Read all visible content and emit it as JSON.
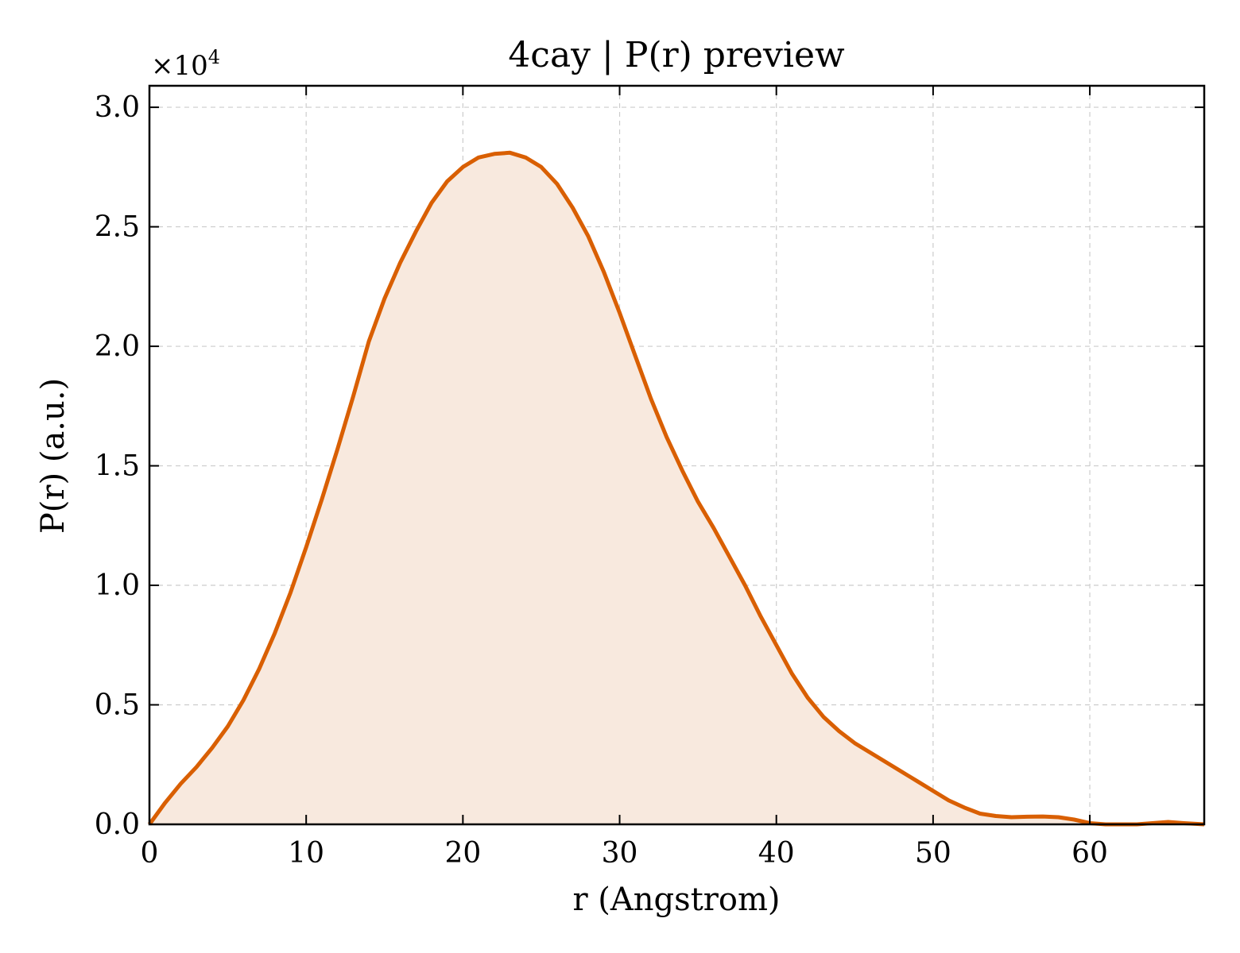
{
  "chart_data": {
    "type": "area",
    "title": "4cay | P(r) preview",
    "xlabel": "r (Angstrom)",
    "ylabel": "P(r) (a.u.)",
    "y_scale_label": "×10",
    "y_scale_exponent": "4",
    "xlim": [
      0,
      67.3
    ],
    "ylim": [
      0,
      3.09
    ],
    "xticks": [
      0,
      10,
      20,
      30,
      40,
      50,
      60
    ],
    "xtick_labels": [
      "0",
      "10",
      "20",
      "30",
      "40",
      "50",
      "60"
    ],
    "yticks": [
      0,
      0.5,
      1.0,
      1.5,
      2.0,
      2.5,
      3.0
    ],
    "ytick_labels": [
      "0.0",
      "0.5",
      "1.0",
      "1.5",
      "2.0",
      "2.5",
      "3.0"
    ],
    "grid": true,
    "line_color": "#d95f02",
    "fill_color": "#f8e9de",
    "series": [
      {
        "x": [
          0,
          1,
          2,
          3,
          4,
          5,
          6,
          7,
          8,
          9,
          10,
          11,
          12,
          13,
          14,
          15,
          16,
          17,
          18,
          19,
          20,
          21,
          22,
          23,
          24,
          25,
          26,
          27,
          28,
          29,
          30,
          31,
          32,
          33,
          34,
          35,
          36,
          37,
          38,
          39,
          40,
          41,
          42,
          43,
          44,
          45,
          46,
          47,
          48,
          49,
          50,
          51,
          52,
          53,
          54,
          55,
          56,
          57,
          58,
          59,
          60,
          61,
          62,
          63,
          64,
          65,
          66,
          67.3
        ],
        "y": [
          0,
          0.09,
          0.17,
          0.24,
          0.32,
          0.41,
          0.52,
          0.65,
          0.8,
          0.97,
          1.16,
          1.36,
          1.57,
          1.79,
          2.02,
          2.2,
          2.35,
          2.48,
          2.6,
          2.69,
          2.75,
          2.79,
          2.805,
          2.81,
          2.79,
          2.75,
          2.68,
          2.58,
          2.46,
          2.31,
          2.14,
          1.96,
          1.78,
          1.62,
          1.48,
          1.35,
          1.24,
          1.12,
          1.0,
          0.87,
          0.75,
          0.63,
          0.53,
          0.45,
          0.39,
          0.34,
          0.3,
          0.26,
          0.22,
          0.18,
          0.14,
          0.1,
          0.07,
          0.045,
          0.035,
          0.03,
          0.032,
          0.033,
          0.03,
          0.02,
          0.005,
          0,
          -0.005,
          0,
          0.005,
          0.01,
          0.005,
          0
        ]
      }
    ]
  }
}
